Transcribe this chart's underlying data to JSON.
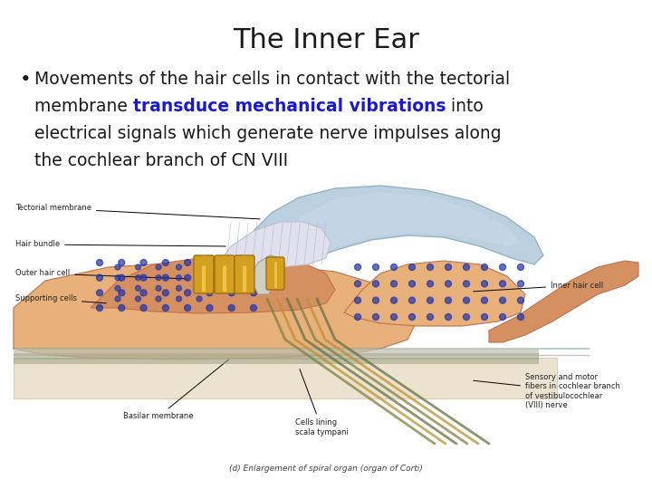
{
  "title": "The Inner Ear",
  "title_fontsize": 22,
  "title_color": "#1a1a1a",
  "bullet_fontsize": 13.5,
  "bullet_color": "#1a1a1a",
  "highlight_color": "#1a1acc",
  "background_color": "#ffffff",
  "line1": "Movements of the hair cells in contact with the tectorial",
  "line2_pre": "membrane ",
  "line2_highlight": "transduce mechanical vibrations",
  "line2_post": " into",
  "line3": "electrical signals which generate nerve impulses along",
  "line4": "the cochlear branch of CN VIII",
  "label_fontsize": 6.0,
  "label_color": "#222222",
  "caption": "(d) Enlargement of spiral organ (organ of Corti)",
  "colors": {
    "skin_light": "#E8B07A",
    "skin_mid": "#D49060",
    "skin_dark": "#C07050",
    "skin_outer": "#C07858",
    "tect_blue": "#B0C8DC",
    "tect_light": "#C8D8E8",
    "hair_white": "#D8D8E8",
    "hair_light": "#E0E0EE",
    "gold_bright": "#D4A020",
    "gold_dark": "#A07010",
    "cell_dot": "#2233AA",
    "nerve_olive": "#808040",
    "nerve_gold": "#C09030",
    "nerve_green": "#687040",
    "basilar_grey": "#909090",
    "teal_line": "#70A0A0",
    "ridge_brown": "#A06040"
  }
}
